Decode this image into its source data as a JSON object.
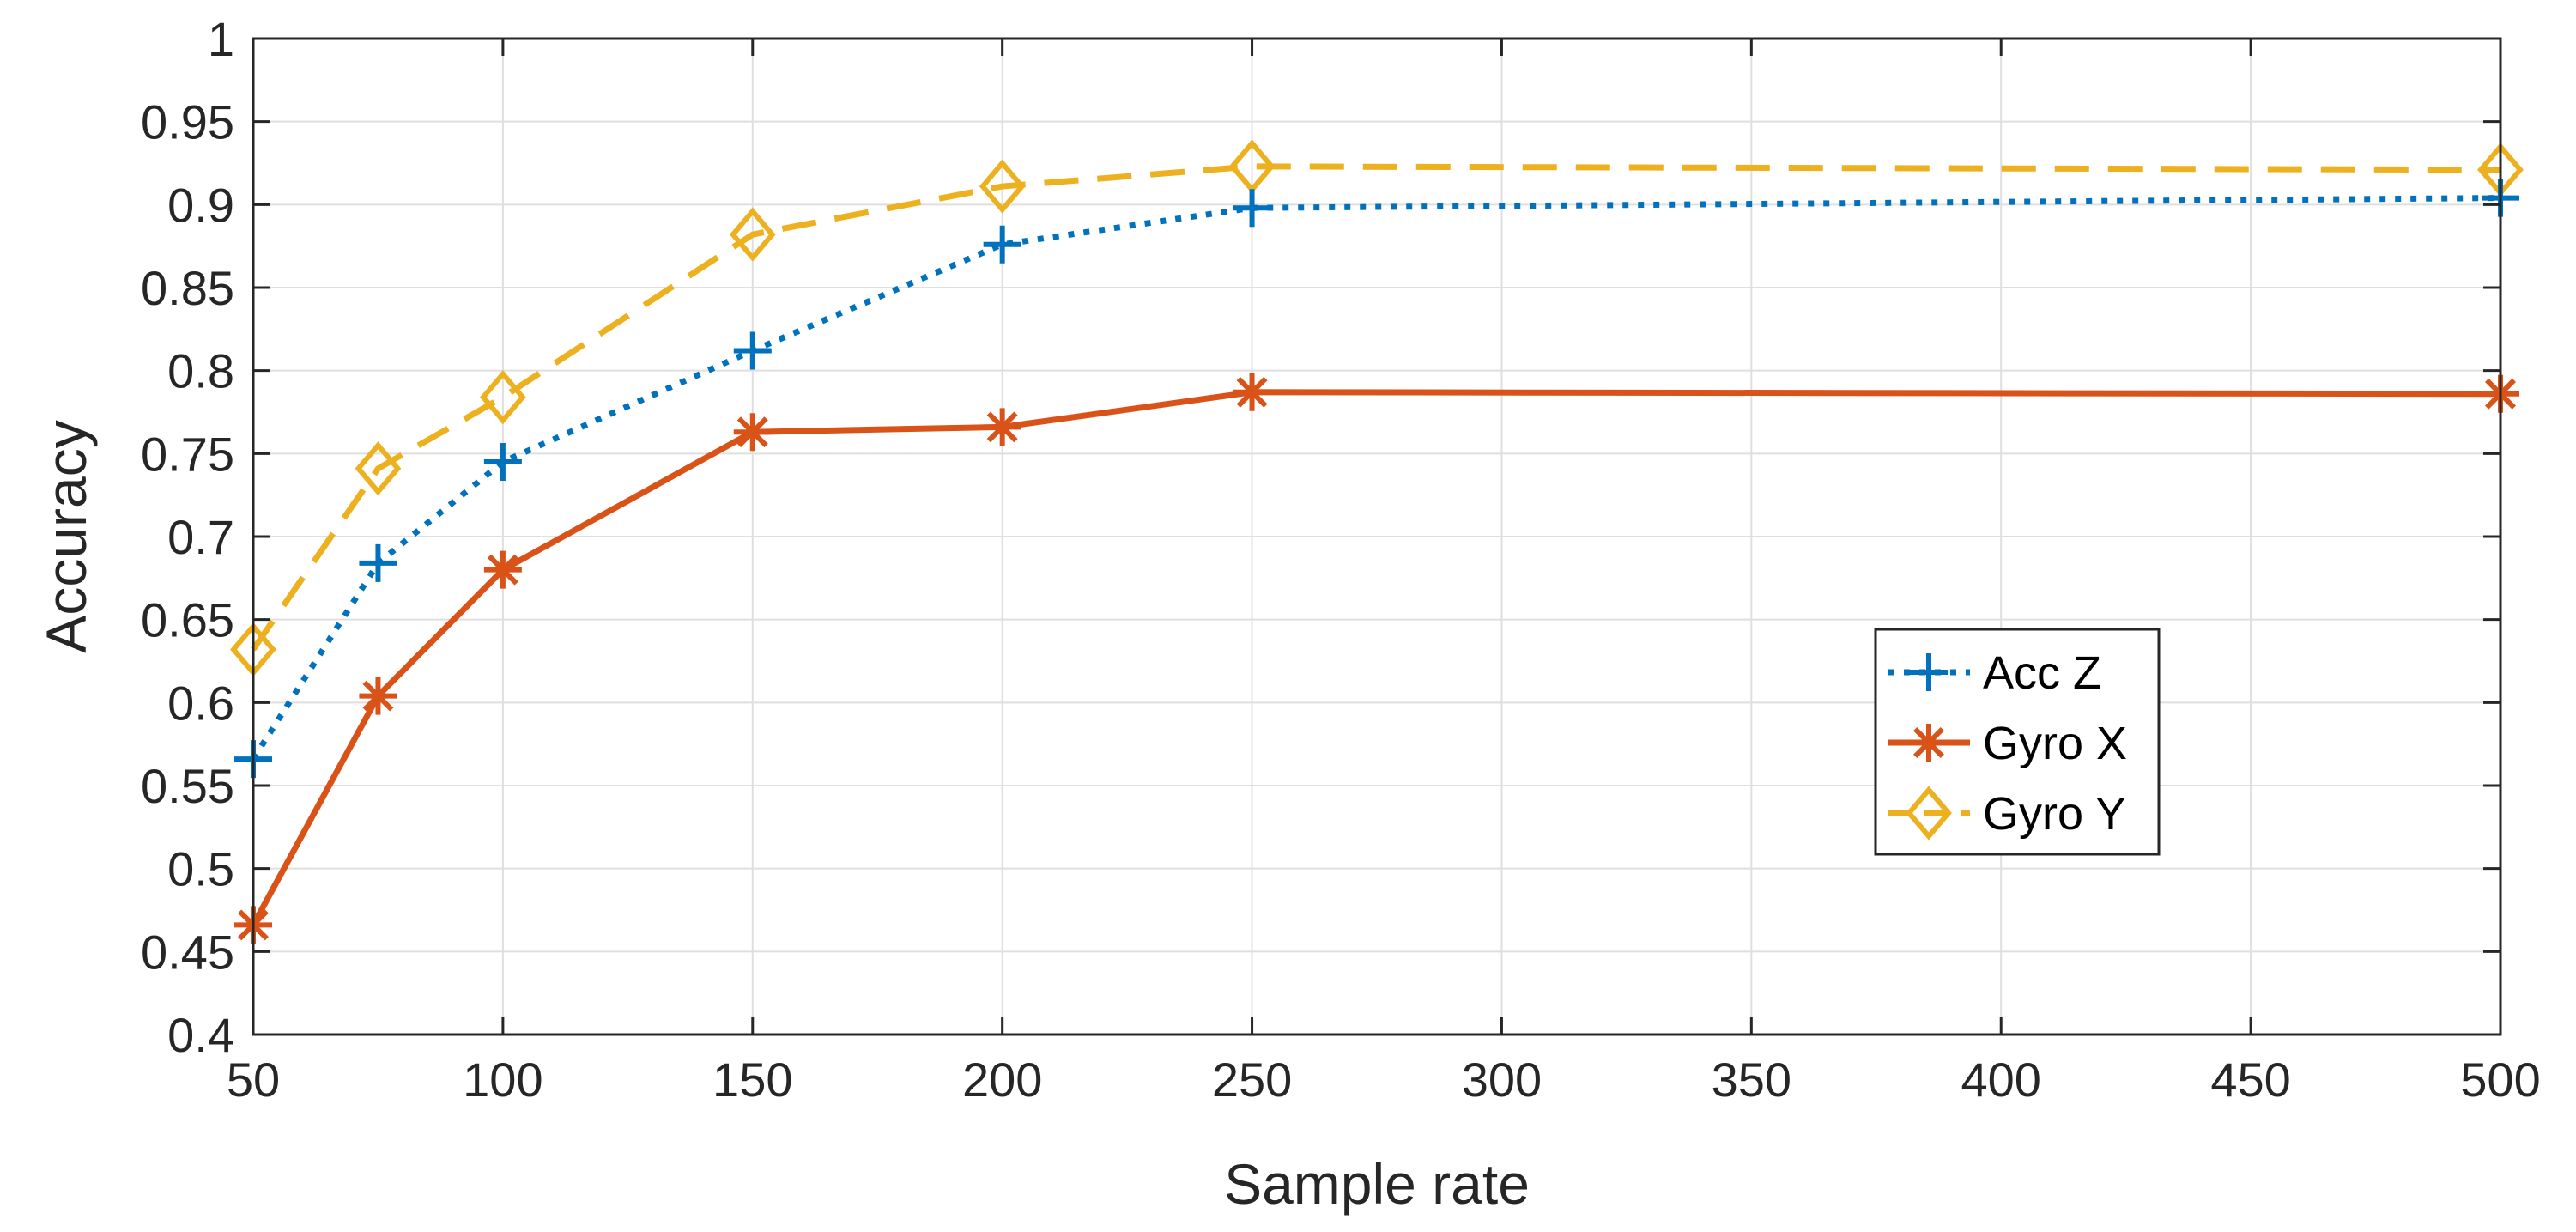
{
  "chart_data": {
    "type": "line",
    "title": "",
    "xlabel": "Sample rate",
    "ylabel": "Accuracy",
    "x": [
      50,
      75,
      100,
      150,
      200,
      250,
      500
    ],
    "xlim": [
      50,
      500
    ],
    "ylim": [
      0.4,
      1
    ],
    "xticks": [
      50,
      100,
      150,
      200,
      250,
      300,
      350,
      400,
      450,
      500
    ],
    "xtick_labels": [
      "50",
      "100",
      "150",
      "200",
      "250",
      "300",
      "350",
      "400",
      "450",
      "500"
    ],
    "yticks": [
      0.4,
      0.45,
      0.5,
      0.55,
      0.6,
      0.65,
      0.7,
      0.75,
      0.8,
      0.85,
      0.9,
      0.95,
      1
    ],
    "ytick_labels": [
      "0.4",
      "0.45",
      "0.5",
      "0.55",
      "0.6",
      "0.65",
      "0.7",
      "0.75",
      "0.8",
      "0.85",
      "0.9",
      "0.95",
      "1"
    ],
    "grid": true,
    "legend_position": "center-right",
    "series": [
      {
        "name": "Acc Z",
        "values": [
          0.566,
          0.684,
          0.745,
          0.812,
          0.876,
          0.898,
          0.904
        ],
        "color": "#0072BD",
        "line_style": "dotted",
        "marker": "plus"
      },
      {
        "name": "Gyro X",
        "values": [
          0.466,
          0.604,
          0.68,
          0.763,
          0.766,
          0.787,
          0.786
        ],
        "color": "#D95319",
        "line_style": "solid",
        "marker": "asterisk"
      },
      {
        "name": "Gyro Y",
        "values": [
          0.632,
          0.741,
          0.784,
          0.882,
          0.911,
          0.923,
          0.921
        ],
        "color": "#EDB120",
        "line_style": "dashed",
        "marker": "diamond"
      }
    ]
  }
}
